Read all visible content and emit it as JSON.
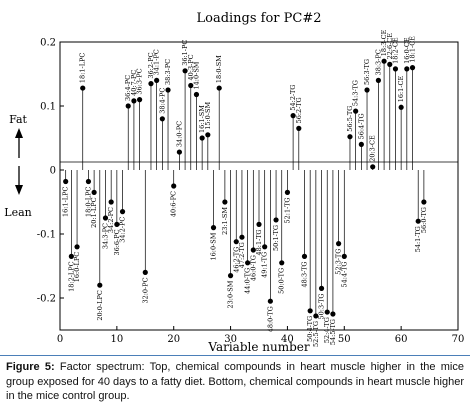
{
  "chart_data": {
    "type": "scatter",
    "title": "Loadings for PC#2",
    "xlabel": "Variable number",
    "ylabel": "",
    "xlim": [
      0,
      70
    ],
    "ylim": [
      -0.25,
      0.2
    ],
    "xticks": [
      0,
      10,
      20,
      30,
      40,
      50,
      60,
      70
    ],
    "yticks": [
      -0.2,
      -0.1,
      0,
      0.1,
      0.2
    ],
    "ytick_labels": [
      "-0.2",
      "-0.1",
      "0",
      "0.1",
      "0.2"
    ],
    "side_labels": {
      "top": "Fat",
      "bottom": "Lean"
    },
    "points": [
      {
        "x": 1,
        "y": -0.018,
        "label": "16:1-LPC"
      },
      {
        "x": 2,
        "y": -0.135,
        "label": "18:2-LPC"
      },
      {
        "x": 3,
        "y": -0.12,
        "label": "16:0-LPC"
      },
      {
        "x": 4,
        "y": 0.128,
        "label": "18:1-LPC"
      },
      {
        "x": 5,
        "y": -0.018,
        "label": "18:0-LPC"
      },
      {
        "x": 6,
        "y": -0.035,
        "label": "20:1-LPC"
      },
      {
        "x": 7,
        "y": -0.18,
        "label": "20:0-LPC"
      },
      {
        "x": 8,
        "y": -0.075,
        "label": "34:3-PC"
      },
      {
        "x": 9,
        "y": -0.05,
        "label": "34:2-PC"
      },
      {
        "x": 10,
        "y": -0.085,
        "label": "36:6-PC"
      },
      {
        "x": 11,
        "y": -0.065,
        "label": "34:2-PC"
      },
      {
        "x": 12,
        "y": 0.1,
        "label": "36:4-PC"
      },
      {
        "x": 13,
        "y": 0.108,
        "label": "40:7-PC"
      },
      {
        "x": 14,
        "y": 0.11,
        "label": "36:3-PC"
      },
      {
        "x": 15,
        "y": -0.16,
        "label": "32:0-PC"
      },
      {
        "x": 16,
        "y": 0.135,
        "label": "36:2-PC"
      },
      {
        "x": 17,
        "y": 0.14,
        "label": "34:1-PC"
      },
      {
        "x": 18,
        "y": 0.08,
        "label": "38:4-PC"
      },
      {
        "x": 19,
        "y": 0.125,
        "label": "38:3-PC"
      },
      {
        "x": 20,
        "y": -0.025,
        "label": "40:6-PC"
      },
      {
        "x": 21,
        "y": 0.028,
        "label": "34:0-PC"
      },
      {
        "x": 22,
        "y": 0.155,
        "label": "36:1-PC"
      },
      {
        "x": 23,
        "y": 0.132,
        "label": "40:3-PC"
      },
      {
        "x": 24,
        "y": 0.118,
        "label": "14:0-SM"
      },
      {
        "x": 25,
        "y": 0.05,
        "label": "16:1-SM"
      },
      {
        "x": 26,
        "y": 0.055,
        "label": "15:0-SM"
      },
      {
        "x": 27,
        "y": -0.09,
        "label": "16:0-SM"
      },
      {
        "x": 28,
        "y": 0.128,
        "label": "18:0-SM"
      },
      {
        "x": 29,
        "y": -0.05,
        "label": "23:1-SM"
      },
      {
        "x": 30,
        "y": -0.165,
        "label": "23:0-SM"
      },
      {
        "x": 31,
        "y": -0.112,
        "label": "46:2-TG"
      },
      {
        "x": 32,
        "y": -0.105,
        "label": "47:2-TG"
      },
      {
        "x": 33,
        "y": -0.145,
        "label": "44:0-TG"
      },
      {
        "x": 34,
        "y": -0.125,
        "label": "46:0-TG"
      },
      {
        "x": 35,
        "y": -0.085,
        "label": "48:1-TG"
      },
      {
        "x": 36,
        "y": -0.12,
        "label": "49:1-TG"
      },
      {
        "x": 37,
        "y": -0.205,
        "label": "48:0-TG"
      },
      {
        "x": 38,
        "y": -0.078,
        "label": "50:1-TG"
      },
      {
        "x": 39,
        "y": -0.145,
        "label": "50:0-TG"
      },
      {
        "x": 40,
        "y": -0.035,
        "label": "52:1-TG"
      },
      {
        "x": 41,
        "y": 0.085,
        "label": "54:2-TG"
      },
      {
        "x": 42,
        "y": 0.065,
        "label": "56:2-TG"
      },
      {
        "x": 43,
        "y": -0.135,
        "label": "48:3-TG"
      },
      {
        "x": 44,
        "y": -0.22,
        "label": "50:4-TG"
      },
      {
        "x": 45,
        "y": -0.228,
        "label": "52:5-TG"
      },
      {
        "x": 46,
        "y": -0.185,
        "label": "50:3-TG"
      },
      {
        "x": 47,
        "y": -0.222,
        "label": "52:4-TG"
      },
      {
        "x": 48,
        "y": -0.225,
        "label": "54:5-TG"
      },
      {
        "x": 49,
        "y": -0.115,
        "label": "52:3-TG"
      },
      {
        "x": 50,
        "y": -0.135,
        "label": "54:4-TG"
      },
      {
        "x": 51,
        "y": 0.052,
        "label": "56:5-TG"
      },
      {
        "x": 52,
        "y": 0.092,
        "label": "54:3-TG"
      },
      {
        "x": 53,
        "y": 0.04,
        "label": "56:4-TG"
      },
      {
        "x": 54,
        "y": 0.125,
        "label": "56:3-TG"
      },
      {
        "x": 55,
        "y": 0.005,
        "label": "20:3-CE"
      },
      {
        "x": 56,
        "y": 0.14,
        "label": "38:3-PC"
      },
      {
        "x": 57,
        "y": 0.17,
        "label": "18:3-CE"
      },
      {
        "x": 58,
        "y": 0.165,
        "label": "22:6-CE"
      },
      {
        "x": 59,
        "y": 0.158,
        "label": "18:2-CE"
      },
      {
        "x": 60,
        "y": 0.098,
        "label": "16:1-CE"
      },
      {
        "x": 61,
        "y": 0.158,
        "label": "16:0-CE"
      },
      {
        "x": 62,
        "y": 0.16,
        "label": "18:1-CE"
      },
      {
        "x": 63,
        "y": -0.08,
        "label": "54:1-TG"
      },
      {
        "x": 64,
        "y": -0.05,
        "label": "56:0-TG"
      }
    ]
  },
  "caption": {
    "label": "Figure 5:",
    "text": " Factor spectrum: Top, chemical compounds in heart muscle higher in the mice group exposed for 40 days to a fatty diet. Bottom, chemical compounds in heart muscle higher in the mice control group."
  }
}
